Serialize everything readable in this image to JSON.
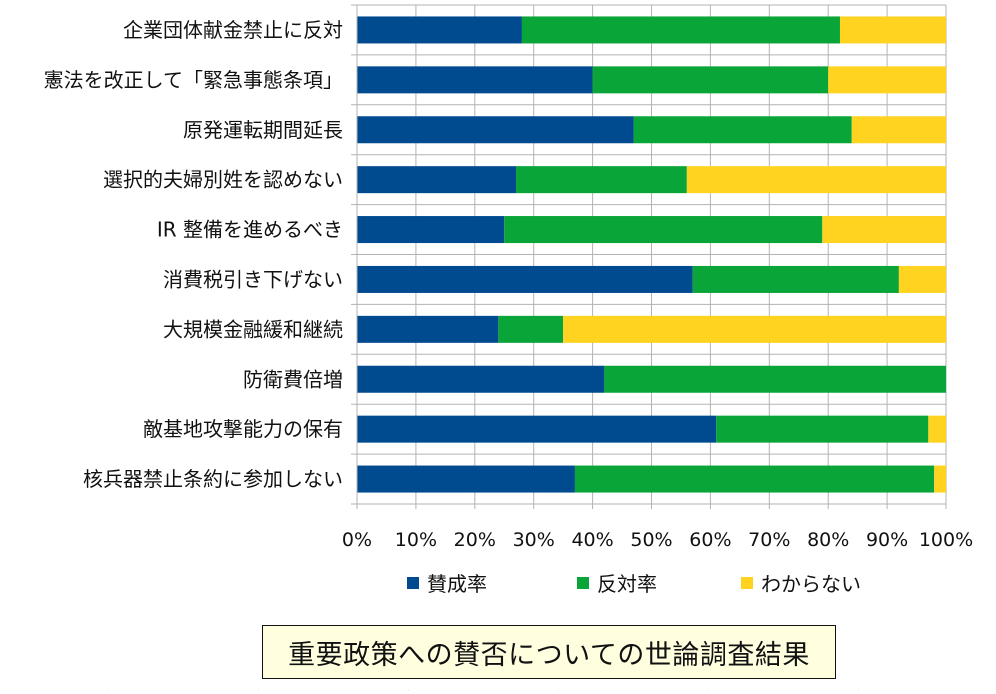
{
  "chart_data": {
    "type": "bar",
    "orientation": "horizontal",
    "stacked": "percent",
    "categories": [
      "企業団体献金禁止に反対",
      "憲法を改正して「緊急事態条項」",
      "原発運転期間延長",
      "選択的夫婦別姓を認めない",
      "IR 整備を進めるべき",
      "消費税引き下げない",
      "大規模金融緩和継続",
      "防衛費倍増",
      "敵基地攻撃能力の保有",
      "核兵器禁止条約に参加しない"
    ],
    "series": [
      {
        "name": "賛成率",
        "color": "#004a8f",
        "values": [
          28,
          40,
          47,
          27,
          25,
          57,
          24,
          42,
          61,
          37
        ]
      },
      {
        "name": "反対率",
        "color": "#0aa538",
        "values": [
          54,
          40,
          37,
          29,
          54,
          35,
          11,
          58,
          36,
          61
        ]
      },
      {
        "name": "わからない",
        "color": "#ffd320",
        "values": [
          18,
          20,
          16,
          44,
          21,
          8,
          65,
          0,
          3,
          2
        ]
      }
    ],
    "xlim": [
      0,
      100
    ],
    "x_ticks": [
      "0%",
      "10%",
      "20%",
      "30%",
      "40%",
      "50%",
      "60%",
      "70%",
      "80%",
      "90%",
      "100%"
    ],
    "grid": true,
    "legend_position": "bottom"
  },
  "caption": "重要政策への賛否についての世論調査結果"
}
